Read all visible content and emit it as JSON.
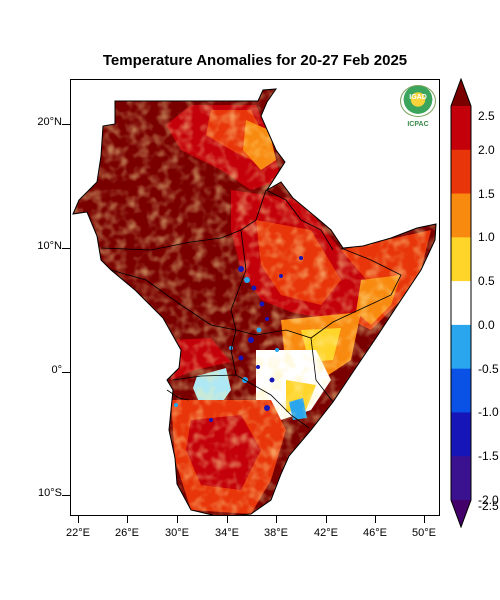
{
  "title": "Temperature Anomalies for 20-27 Feb 2025",
  "logo": {
    "acronym": "IGAD",
    "sub": "ICPAC"
  },
  "axes": {
    "lat_ticks": [
      "20°N",
      "10°N",
      "0°",
      "10°S"
    ],
    "lon_ticks": [
      "22°E",
      "26°E",
      "30°E",
      "34°E",
      "38°E",
      "42°E",
      "46°E",
      "50°E"
    ]
  },
  "colorbar": {
    "labels": [
      "2.5",
      "2.0",
      "1.5",
      "1.0",
      "0.5",
      "0.0",
      "-0.5",
      "-1.0",
      "-1.5",
      "-2.0",
      "-2.5"
    ],
    "colors": [
      "#7a0000",
      "#c4000a",
      "#e8360a",
      "#f98a10",
      "#ffd52a",
      "#ffffff",
      "#2aa6ee",
      "#0a52e6",
      "#1616b8",
      "#3a1290",
      "#44006a"
    ]
  }
}
